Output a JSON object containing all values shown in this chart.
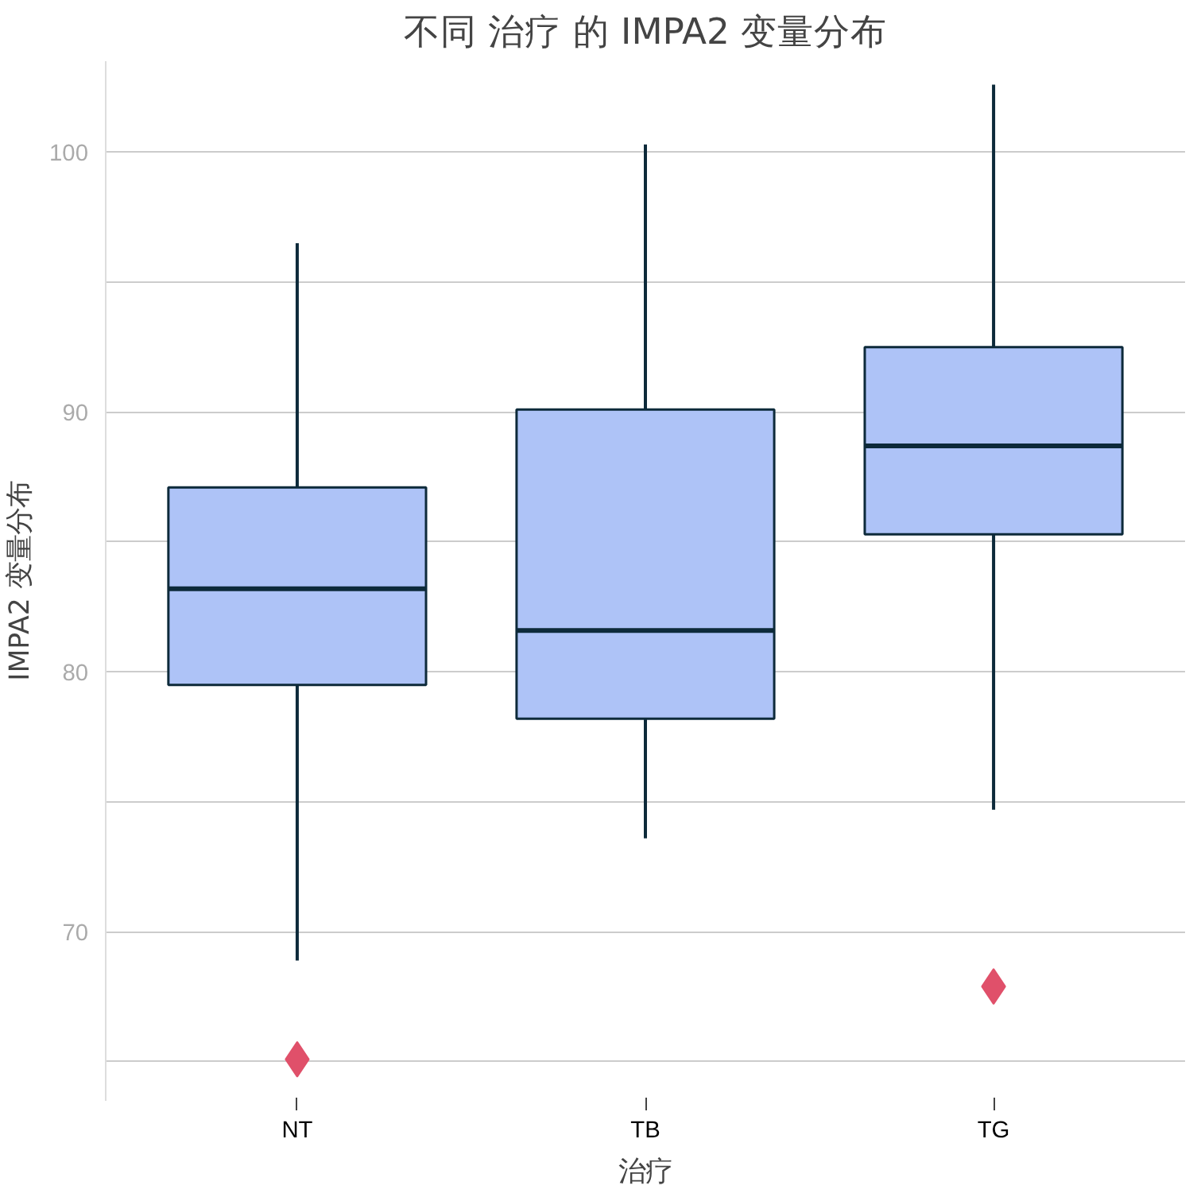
{
  "chart_data": {
    "type": "box",
    "title": "不同 治疗 的 IMPA2 变量分布",
    "xlabel": "治疗",
    "ylabel": "IMPA2 变量分布",
    "categories": [
      "NT",
      "TB",
      "TG"
    ],
    "series": [
      {
        "color": "#aec3f7",
        "boxes": [
          {
            "low": 68.9,
            "q1": 79.5,
            "median": 83.2,
            "q3": 87.1,
            "high": 96.5,
            "outliers": [
              65.1
            ]
          },
          {
            "low": 73.6,
            "q1": 78.2,
            "median": 81.6,
            "q3": 90.1,
            "high": 100.3
          },
          {
            "low": 74.7,
            "q1": 85.3,
            "median": 88.7,
            "q3": 92.5,
            "high": 102.6,
            "outliers": [
              67.9
            ]
          }
        ]
      }
    ],
    "ylim": [
      63.5,
      103.5
    ],
    "yticks": [
      {
        "value": 65,
        "label": null
      },
      70,
      {
        "value": 75,
        "label": null
      },
      80,
      {
        "value": 85,
        "label": null
      },
      90,
      {
        "value": 95,
        "label": null
      },
      100
    ],
    "grid": "y",
    "marker": "diamond"
  }
}
